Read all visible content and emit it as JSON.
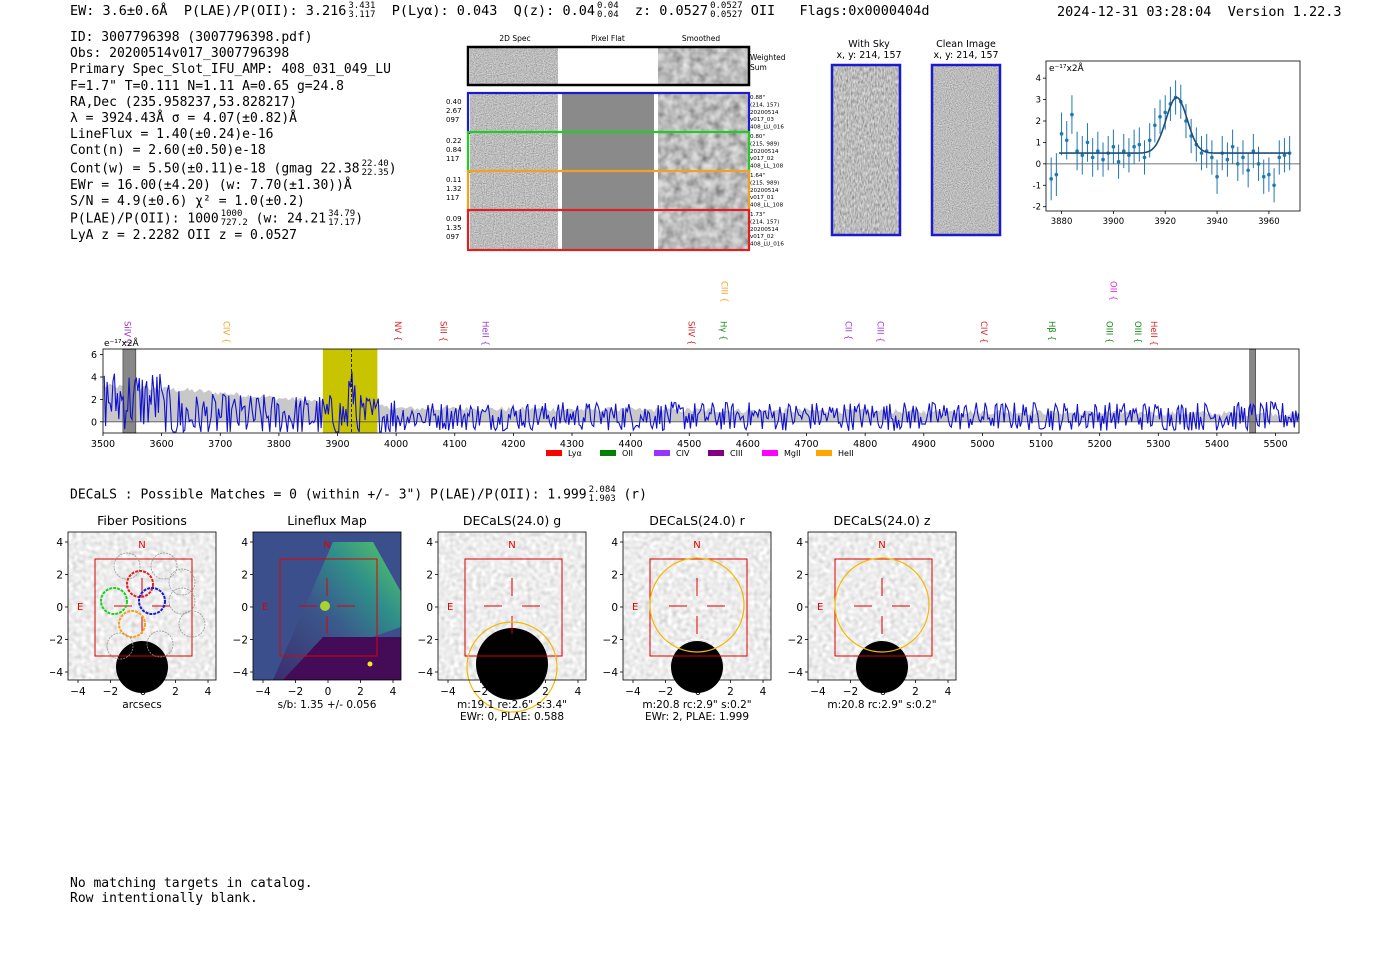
{
  "header": {
    "ew": "EW: 3.6±0.6Å",
    "plae_label": "P(LAE)/P(OII): 3.216",
    "plae_hi": "3.431",
    "plae_lo": "3.117",
    "plya": "P(Lyα): 0.043",
    "q_label": "Q(z): 0.04",
    "q_hi": "0.04",
    "q_lo": "0.04",
    "z_label": "z: 0.0527",
    "z_hi": "0.0527",
    "z_lo": "0.0527",
    "z_line": "OII",
    "flags": "Flags:0x0000404d",
    "timestamp": "2024-12-31 03:28:04",
    "version": "Version 1.22.3"
  },
  "info": {
    "id": "ID: 3007796398 (3007796398.pdf)",
    "obs": "Obs: 20200514v017_3007796398",
    "primary": "Primary Spec_Slot_IFU_AMP: 408_031_049_LU",
    "params": "F=1.7\"  T=0.111  N=1.11  A=0.65  g=24.8",
    "radec": "RA,Dec (235.958237,53.828217)",
    "lambda": "λ = 3924.43Å  σ = 4.07(±0.82)Å",
    "lineflux": "LineFlux = 1.40(±0.24)e-16",
    "contn": "Cont(n) = 2.60(±0.50)e-18",
    "contw": "Cont(w) = 5.50(±0.11)e-18 (gmag 22.38",
    "contw_hi": "22.40",
    "contw_lo": "22.35",
    "contw_end": ")",
    "ewr": "EWr = 16.00(±4.20) (w: 7.70(±1.30))Å",
    "sn": "S/N = 4.9(±0.6)  χ² = 1.0(±0.2)",
    "plae": "P(LAE)/P(OII): 1000",
    "plae_hi": "1000",
    "plae_lo": "727.2",
    "plae_w": "(w: 24.21",
    "plae_w_hi": "34.79",
    "plae_w_lo": "17.17",
    "plae_end": ")",
    "z": "LyA z = 2.2282  OII z = 0.0527"
  },
  "cutouts": {
    "col_labels": [
      "2D Spec",
      "Pixel Flat",
      "Smoothed"
    ],
    "weighted": [
      "Weighted",
      "Sum"
    ],
    "rows": [
      {
        "left": [
          "0.40",
          "2.67",
          "097"
        ],
        "right": [
          "0.88\"",
          "(214, 157)",
          "20200514",
          "v017_03",
          "408_LU_016"
        ],
        "color": "#1a1ad0"
      },
      {
        "left": [
          "0.22",
          "0.84",
          "117"
        ],
        "right": [
          "0.80\"",
          "(215, 989)",
          "20200514",
          "v017_02",
          "408_LL_108"
        ],
        "color": "#22cc22"
      },
      {
        "left": [
          "0.11",
          "1.32",
          "117"
        ],
        "right": [
          "1.64\"",
          "(215, 989)",
          "20200514",
          "v017_01",
          "408_LL_108"
        ],
        "color": "#f5a020"
      },
      {
        "left": [
          "0.09",
          "1.35",
          "097"
        ],
        "right": [
          "1.73\"",
          "(214, 157)",
          "20200514",
          "v017_02",
          "408_LU_016"
        ],
        "color": "#e02020"
      }
    ]
  },
  "sky": {
    "with_sky_title": "With Sky",
    "with_sky_sub": "x, y: 214, 157",
    "clean_title": "Clean Image",
    "clean_sub": "x, y: 214, 157"
  },
  "chart_data": [
    {
      "type": "line",
      "name": "emission-line-fit",
      "ylabel": "e⁻¹⁷x2Å",
      "xlim": [
        3874,
        3972
      ],
      "ylim": [
        -2.2,
        4.8
      ],
      "xticks": [
        "3880",
        "3900",
        "3920",
        "3940",
        "3960"
      ],
      "yticks": [
        "-2",
        "-1",
        "0",
        "1",
        "2",
        "3",
        "4"
      ],
      "fit": {
        "center": 3924.4,
        "sigma": 4.07,
        "amplitude": 2.6,
        "continuum": 0.5
      },
      "points_x": [
        3876,
        3878,
        3880,
        3882,
        3884,
        3886,
        3888,
        3890,
        3892,
        3894,
        3896,
        3898,
        3900,
        3902,
        3904,
        3906,
        3908,
        3910,
        3912,
        3914,
        3916,
        3918,
        3920,
        3922,
        3924,
        3926,
        3928,
        3930,
        3932,
        3934,
        3936,
        3938,
        3940,
        3942,
        3944,
        3946,
        3948,
        3950,
        3952,
        3954,
        3956,
        3958,
        3960,
        3962,
        3964,
        3966,
        3968
      ],
      "points_y": [
        -0.7,
        -0.5,
        1.4,
        1.1,
        2.3,
        0.6,
        0.4,
        1.0,
        0.3,
        0.6,
        0.2,
        0.5,
        0.8,
        0.1,
        0.6,
        0.4,
        0.8,
        0.9,
        0.3,
        1.1,
        1.8,
        2.2,
        2.4,
        2.8,
        3.1,
        2.9,
        2.0,
        1.3,
        0.9,
        0.5,
        0.6,
        0.3,
        -0.6,
        0.5,
        0.2,
        0.8,
        0.0,
        0.3,
        -0.3,
        0.6,
        0.0,
        -0.6,
        -0.5,
        -1.0,
        0.3,
        0.4,
        0.5
      ],
      "errors": [
        1.0,
        1.0,
        1.0,
        0.9,
        0.9,
        0.9,
        0.9,
        0.9,
        0.9,
        0.9,
        0.8,
        0.8,
        0.8,
        0.8,
        0.8,
        0.8,
        0.8,
        0.8,
        0.8,
        0.8,
        0.8,
        0.8,
        0.8,
        0.8,
        0.8,
        0.8,
        0.8,
        0.8,
        0.8,
        0.8,
        0.8,
        0.8,
        0.8,
        0.8,
        0.8,
        0.8,
        0.8,
        0.8,
        0.8,
        0.8,
        0.8,
        0.8,
        0.8,
        0.8,
        0.8,
        0.8,
        0.8
      ]
    },
    {
      "type": "line",
      "name": "full-spectrum",
      "ylabel": "e⁻¹⁷x2Å",
      "xlim": [
        3500,
        5540
      ],
      "ylim": [
        -1,
        6.5
      ],
      "xticks": [
        "3500",
        "3600",
        "3700",
        "3800",
        "3900",
        "4000",
        "4100",
        "4200",
        "4300",
        "4400",
        "4500",
        "4600",
        "4700",
        "4800",
        "4900",
        "5000",
        "5100",
        "5200",
        "5300",
        "5400",
        "5500"
      ],
      "yticks": [
        "0",
        "2",
        "4",
        "6"
      ],
      "highlight_band": [
        3875,
        3968
      ],
      "marker_line": 3924,
      "masked_bands": [
        [
          3534,
          3556
        ],
        [
          5456,
          5466
        ]
      ],
      "line_labels": [
        {
          "label": "SiIV",
          "x": 3542,
          "color": "#9933cc",
          "row": "low"
        },
        {
          "label": "CIV",
          "x": 3711,
          "color": "#f5a020",
          "row": "low"
        },
        {
          "label": "NV",
          "x": 4003,
          "color": "#e02020",
          "row": "low"
        },
        {
          "label": "SiII",
          "x": 4081,
          "color": "#e02020",
          "row": "low"
        },
        {
          "label": "HeII",
          "x": 4152,
          "color": "#9933cc",
          "row": "low"
        },
        {
          "label": "SiIV",
          "x": 4504,
          "color": "#e02020",
          "row": "low"
        },
        {
          "label": "Hγ",
          "x": 4558,
          "color": "#118811",
          "row": "low"
        },
        {
          "label": "CIII",
          "x": 4560,
          "color": "#f5a020",
          "row": "high"
        },
        {
          "label": "CII",
          "x": 4772,
          "color": "#9933cc",
          "row": "low"
        },
        {
          "label": "CIII",
          "x": 4826,
          "color": "#9933cc",
          "row": "low"
        },
        {
          "label": "CIV",
          "x": 5003,
          "color": "#e02020",
          "row": "low"
        },
        {
          "label": "Hβ",
          "x": 5119,
          "color": "#118811",
          "row": "low"
        },
        {
          "label": "OIII",
          "x": 5217,
          "color": "#118811",
          "row": "low"
        },
        {
          "label": "OII",
          "x": 5224,
          "color": "#dd22dd",
          "row": "high"
        },
        {
          "label": "OIII",
          "x": 5265,
          "color": "#118811",
          "row": "low"
        },
        {
          "label": "HeII",
          "x": 5293,
          "color": "#e02020",
          "row": "low"
        }
      ],
      "legend": [
        {
          "label": "Lyα",
          "color": "#ff0000"
        },
        {
          "label": "OII",
          "color": "#008000"
        },
        {
          "label": "CIV",
          "color": "#9933ff"
        },
        {
          "label": "CIII",
          "color": "#800080"
        },
        {
          "label": "MgII",
          "color": "#ff00ff"
        },
        {
          "label": "HeII",
          "color": "#ffa500"
        }
      ]
    }
  ],
  "decals": {
    "summary": "DECaLS : Possible Matches = 0 (within +/- 3\")  P(LAE)/P(OII): 1.999",
    "summary_hi": "2.084",
    "summary_lo": "1.903",
    "summary_end": "(r)",
    "panels": [
      {
        "title": "Fiber Positions",
        "cap1": "arcsecs",
        "cap2": ""
      },
      {
        "title": "Lineflux Map",
        "cap1": "s/b: 1.35 +/- 0.056",
        "cap2": ""
      },
      {
        "title": "DECaLS(24.0) g",
        "cap1": "m:19.1  re:2.6\"  s:3.4\"",
        "cap2": "EWr: 0, PLAE: 0.588"
      },
      {
        "title": "DECaLS(24.0) r",
        "cap1": "m:20.8 rc:2.9\"  s:0.2\"",
        "cap2": "EWr: 2, PLAE: 1.999"
      },
      {
        "title": "DECaLS(24.0) z",
        "cap1": "m:20.8 rc:2.9\"  s:0.2\"",
        "cap2": ""
      }
    ],
    "ticks": [
      "4",
      "2",
      "0",
      "−2",
      "−4"
    ],
    "xticks": [
      "−4",
      "−2",
      "0",
      "2",
      "4"
    ],
    "north": "N",
    "east": "E"
  },
  "footer": {
    "line1": "No matching targets in catalog.",
    "line2": "Row intentionally blank."
  }
}
